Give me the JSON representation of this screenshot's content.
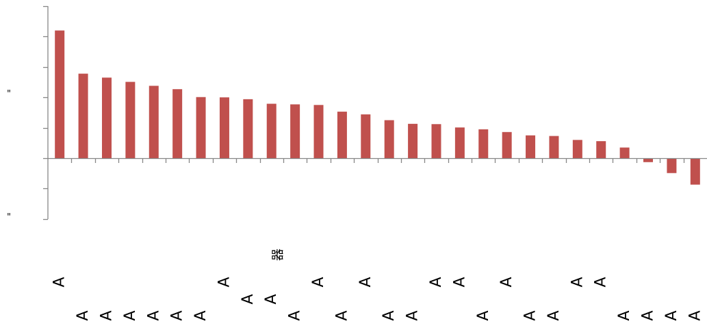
{
  "chart_data": {
    "type": "bar",
    "title": "",
    "xlabel": "",
    "ylabel": "",
    "xlabel_glyph": "器",
    "ylim": [
      -2,
      5
    ],
    "y_tick_labels": [
      "\"",
      "\""
    ],
    "bar_color": "#c0504d",
    "axis_color": "#868686",
    "grid": false,
    "legend": "none",
    "categories": [
      "A",
      "A",
      "A",
      "A",
      "A",
      "A",
      "A",
      "A",
      "A",
      "A",
      "A",
      "A",
      "A",
      "A",
      "A",
      "A",
      "A",
      "A",
      "A",
      "A",
      "A",
      "A",
      "A",
      "A",
      "A",
      "A",
      "A",
      "A"
    ],
    "values": [
      4.2,
      2.78,
      2.65,
      2.51,
      2.38,
      2.27,
      2.01,
      2.0,
      1.94,
      1.79,
      1.77,
      1.75,
      1.53,
      1.44,
      1.25,
      1.13,
      1.12,
      1.01,
      0.95,
      0.86,
      0.75,
      0.73,
      0.6,
      0.56,
      0.35,
      -0.13,
      -0.49,
      -0.87
    ]
  }
}
